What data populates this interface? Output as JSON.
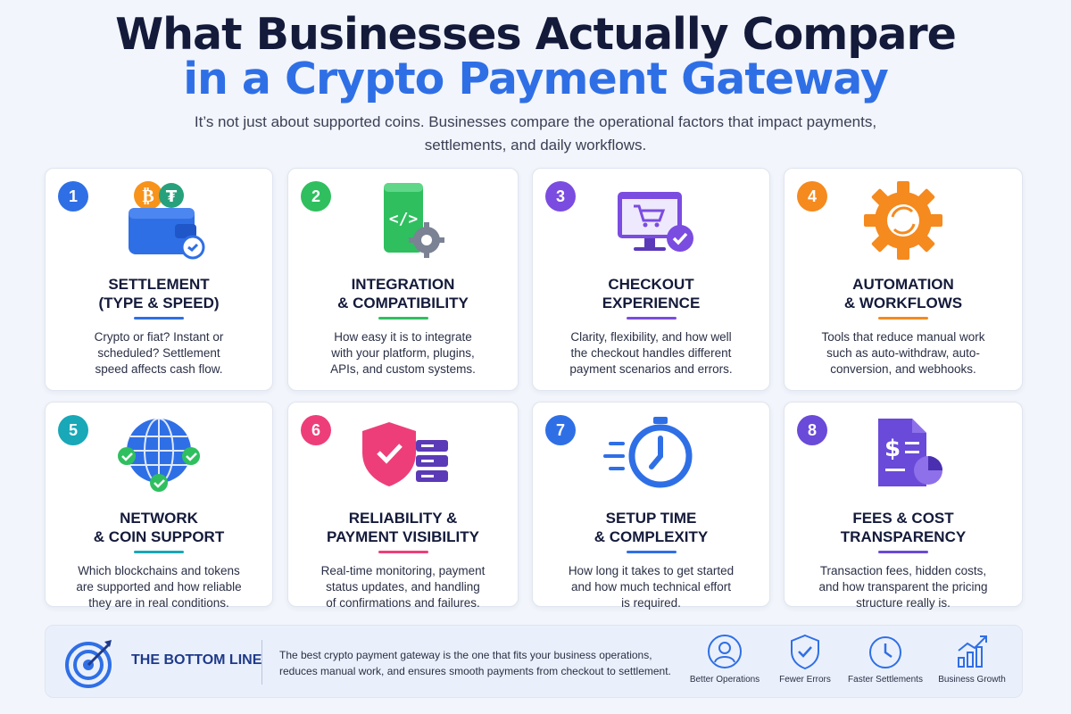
{
  "header": {
    "title_line1": "What Businesses Actually Compare",
    "title_line2": "in a Crypto Payment Gateway",
    "subtitle": "It’s not just about supported coins. Businesses compare the operational factors that impact payments, settlements, and daily workflows."
  },
  "cards": [
    {
      "number": "1",
      "color": "#2f6fe6",
      "icon": "crypto-wallet-icon",
      "title": "SETTLEMENT\n(TYPE & SPEED)",
      "description": "Crypto or fiat? Instant or\nscheduled? Settlement\nspeed affects cash flow."
    },
    {
      "number": "2",
      "color": "#2fbf5f",
      "icon": "code-integration-icon",
      "title": "INTEGRATION\n& COMPATIBILITY",
      "description": "How easy it is to integrate\nwith your platform, plugins,\nAPIs, and custom systems."
    },
    {
      "number": "3",
      "color": "#7b4ce0",
      "icon": "checkout-screen-icon",
      "title": "CHECKOUT\nEXPERIENCE",
      "description": "Clarity, flexibility, and how well\nthe checkout handles different\npayment scenarios and errors."
    },
    {
      "number": "4",
      "color": "#f58a1f",
      "icon": "automation-gear-icon",
      "title": "AUTOMATION\n& WORKFLOWS",
      "description": "Tools that reduce manual work\nsuch as auto-withdraw, auto-\nconversion, and webhooks."
    },
    {
      "number": "5",
      "color": "#18a8b8",
      "icon": "network-globe-icon",
      "title": "NETWORK\n& COIN SUPPORT",
      "description": "Which blockchains and tokens\nare supported and how reliable\nthey are in real conditions."
    },
    {
      "number": "6",
      "color": "#ee3e7a",
      "icon": "shield-server-icon",
      "title": "RELIABILITY &\nPAYMENT VISIBILITY",
      "description": "Real-time monitoring, payment\nstatus updates, and handling\nof confirmations and failures."
    },
    {
      "number": "7",
      "color": "#2f6fe6",
      "icon": "stopwatch-icon",
      "title": "SETUP TIME\n& COMPLEXITY",
      "description": "How long it takes to get started\nand how much technical effort\nis required."
    },
    {
      "number": "8",
      "color": "#6a4ad8",
      "icon": "invoice-chart-icon",
      "title": "FEES & COST\nTRANSPARENCY",
      "description": "Transaction fees, hidden costs,\nand how transparent the pricing\nstructure really is."
    }
  ],
  "bottom_line": {
    "title": "THE BOTTOM LINE",
    "text": "The best crypto payment gateway is the one that fits your business operations, reduces manual work, and ensures smooth payments from checkout to settlement.",
    "badges": [
      {
        "icon": "user-icon",
        "label": "Better Operations"
      },
      {
        "icon": "shield-check-icon",
        "label": "Fewer Errors"
      },
      {
        "icon": "clock-icon",
        "label": "Faster Settlements"
      },
      {
        "icon": "growth-chart-icon",
        "label": "Business Growth"
      }
    ]
  }
}
